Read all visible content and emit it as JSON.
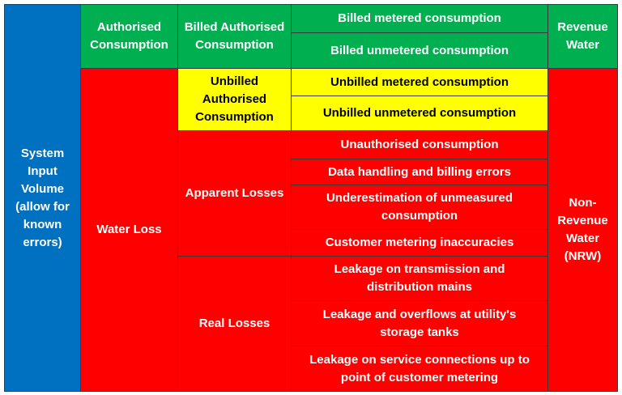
{
  "system_input": "System Input Volume (allow for known errors)",
  "authorised_consumption": "Authorised Consumption",
  "water_loss": "Water Loss",
  "billed": {
    "label": "Billed Authorised Consumption",
    "items": [
      "Billed metered consumption",
      "Billed unmetered consumption"
    ]
  },
  "unbilled": {
    "label": "Unbilled Authorised Consumption",
    "items": [
      "Unbilled metered consumption",
      "Unbilled unmetered consumption"
    ]
  },
  "apparent": {
    "label": "Apparent Losses",
    "items": [
      "Unauthorised consumption",
      "Data handling and billing errors",
      "Underestimation of unmeasured consumption",
      "Customer metering inaccuracies"
    ]
  },
  "real": {
    "label": "Real Losses",
    "items": [
      "Leakage on transmission and distribution mains",
      "Leakage and overflows at utility's storage tanks",
      "Leakage on service connections up to point of customer metering"
    ]
  },
  "revenue_water": "Revenue Water",
  "non_revenue_water": "Non-Revenue Water (NRW)"
}
